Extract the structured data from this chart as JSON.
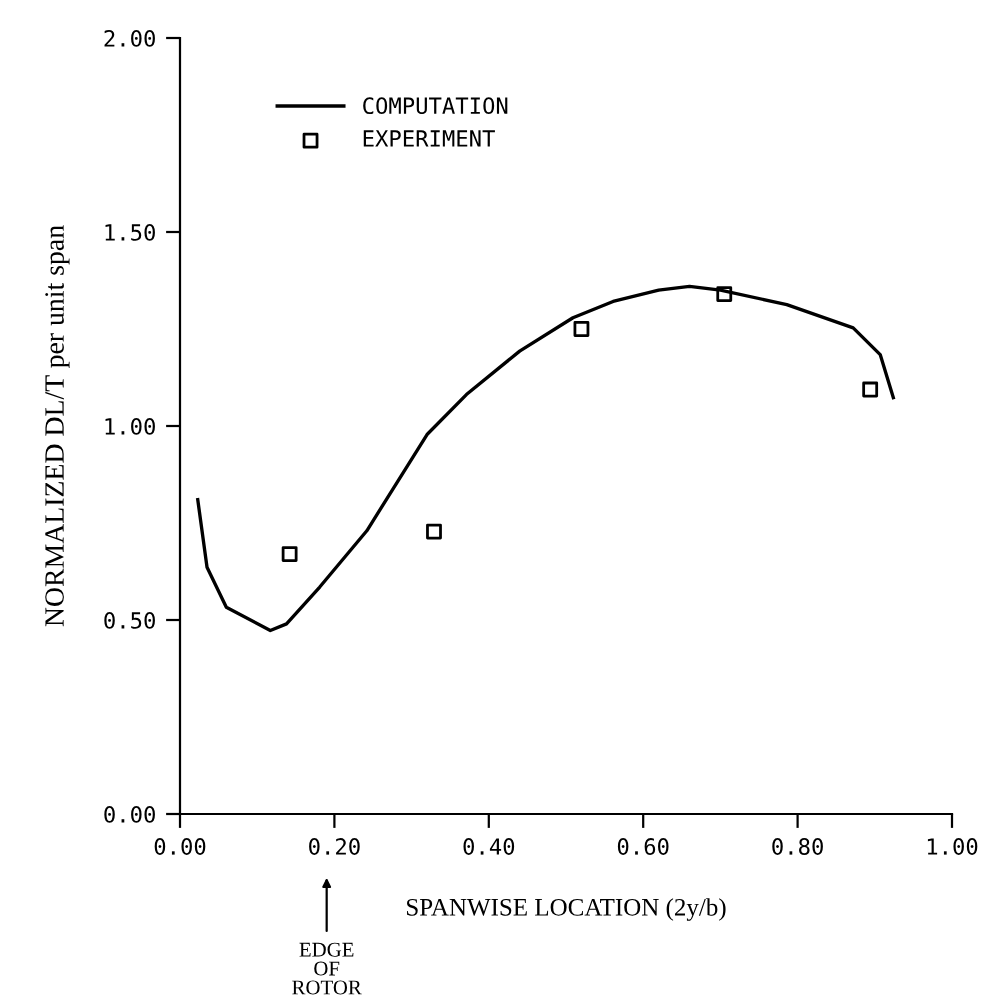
{
  "chart_data": {
    "type": "line",
    "xlabel": "SPANWISE LOCATION (2y/b)",
    "ylabel": "NORMALIZED DL/T per unit span",
    "xlim": [
      0,
      1
    ],
    "ylim": [
      0,
      2
    ],
    "xticks": [
      {
        "value": 0,
        "label": "0.00"
      },
      {
        "value": 0.2,
        "label": "0.20"
      },
      {
        "value": 0.4,
        "label": "0.40"
      },
      {
        "value": 0.6,
        "label": "0.60"
      },
      {
        "value": 0.8,
        "label": "0.80"
      },
      {
        "value": 1,
        "label": "1.00"
      }
    ],
    "yticks": [
      {
        "value": 0,
        "label": "0.00"
      },
      {
        "value": 0.5,
        "label": "0.50"
      },
      {
        "value": 1,
        "label": "1.00"
      },
      {
        "value": 1.5,
        "label": "1.50"
      },
      {
        "value": 2,
        "label": "2.00"
      }
    ],
    "legend": "top left",
    "grid": false,
    "series": [
      {
        "name": "COMPUTATION",
        "color": "#000000",
        "x": [
          0.023,
          0.035,
          0.06,
          0.117,
          0.138,
          0.181,
          0.242,
          0.32,
          0.371,
          0.44,
          0.509,
          0.561,
          0.62,
          0.66,
          0.7,
          0.786,
          0.872,
          0.907,
          0.924
        ],
        "values": [
          0.81,
          0.636,
          0.533,
          0.473,
          0.49,
          0.585,
          0.73,
          0.978,
          1.081,
          1.193,
          1.279,
          1.321,
          1.35,
          1.36,
          1.35,
          1.313,
          1.253,
          1.184,
          1.073
        ]
      },
      {
        "name": "EXPERIMENT",
        "type": "scatter",
        "marker": "square",
        "color": "#000000",
        "x": [
          0.142,
          0.329,
          0.52,
          0.705,
          0.894
        ],
        "values": [
          0.67,
          0.728,
          1.25,
          1.34,
          1.094
        ]
      }
    ],
    "annotations": [
      "EDGE\nOF\nROTOR"
    ]
  }
}
